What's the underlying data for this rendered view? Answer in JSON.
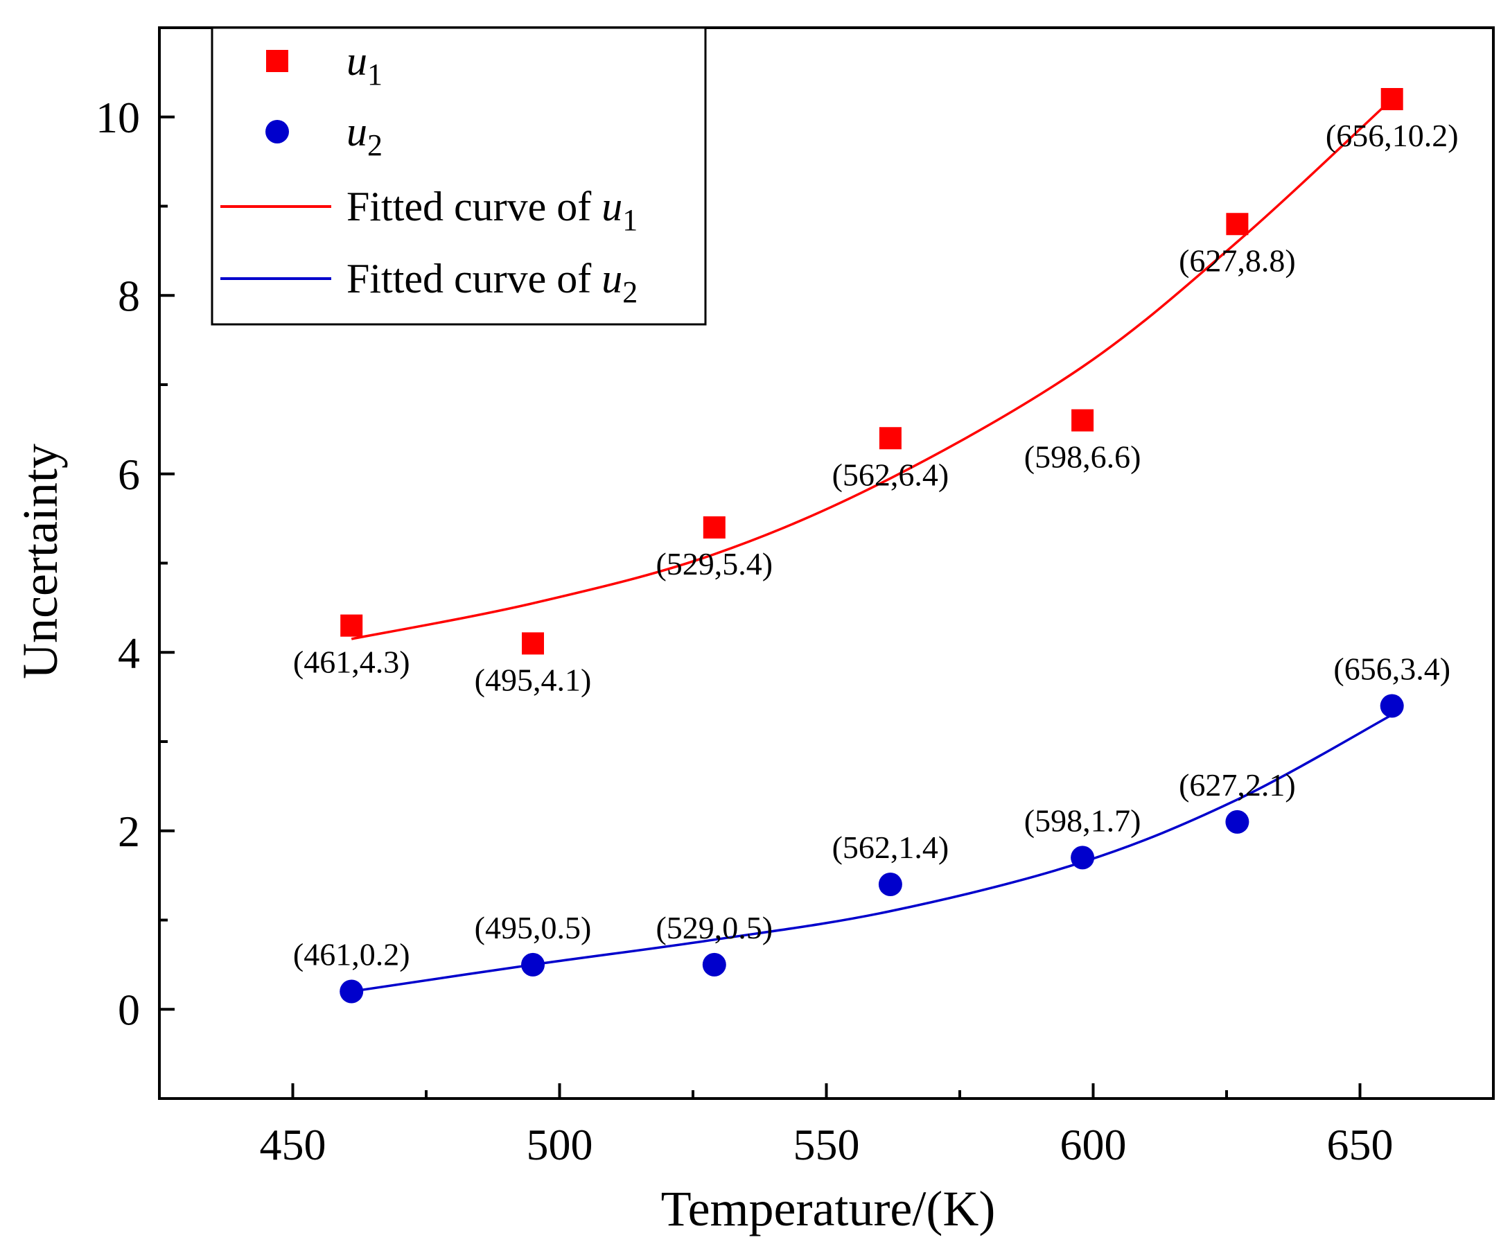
{
  "chart_data": {
    "type": "scatter",
    "title": "",
    "xlabel": "Temperature/(K)",
    "ylabel": "Uncertainty",
    "xlim": [
      425,
      675
    ],
    "ylim": [
      -1,
      11
    ],
    "x_ticks": [
      450,
      500,
      550,
      600,
      650
    ],
    "x_minor_ticks": [
      475,
      525,
      575,
      625
    ],
    "y_ticks": [
      0,
      2,
      4,
      6,
      8,
      10
    ],
    "y_minor_ticks": [
      1,
      3,
      5,
      7,
      9
    ],
    "x_tick_labels": [
      "450",
      "500",
      "550",
      "600",
      "650"
    ],
    "y_tick_labels": [
      "0",
      "2",
      "4",
      "6",
      "8",
      "10"
    ],
    "grid": false,
    "legend_position": "top-left",
    "series": [
      {
        "name": "u1",
        "legend_label": "u",
        "legend_sub": "1",
        "marker": "square",
        "color": "#ff0000",
        "x": [
          461,
          495,
          529,
          562,
          598,
          627,
          656
        ],
        "y": [
          4.3,
          4.1,
          5.4,
          6.4,
          6.6,
          8.8,
          10.2
        ],
        "labels": [
          "(461,4.3)",
          "(495,4.1)",
          "(529,5.4)",
          "(562,6.4)",
          "(598,6.6)",
          "(627,8.8)",
          "(656,10.2)"
        ]
      },
      {
        "name": "u2",
        "legend_label": "u",
        "legend_sub": "2",
        "marker": "circle",
        "color": "#0000cc",
        "x": [
          461,
          495,
          529,
          562,
          598,
          627,
          656
        ],
        "y": [
          0.2,
          0.5,
          0.5,
          1.4,
          1.7,
          2.1,
          3.4
        ],
        "labels": [
          "(461,0.2)",
          "(495,0.5)",
          "(529,0.5)",
          "(562,1.4)",
          "(598,1.7)",
          "(627,2.1)",
          "(656,3.4)"
        ]
      }
    ],
    "fits": [
      {
        "name": "fit-u1",
        "legend_prefix": "Fitted curve of ",
        "legend_var": "u",
        "legend_sub": "1",
        "color": "#ff0000",
        "x": [
          461,
          495,
          529,
          562,
          598,
          627,
          656
        ],
        "y": [
          4.15,
          4.55,
          5.1,
          5.95,
          7.2,
          8.6,
          10.2
        ]
      },
      {
        "name": "fit-u2",
        "legend_prefix": "Fitted curve of ",
        "legend_var": "u",
        "legend_sub": "2",
        "color": "#0000cc",
        "x": [
          461,
          495,
          529,
          562,
          598,
          627,
          656
        ],
        "y": [
          0.2,
          0.5,
          0.78,
          1.1,
          1.65,
          2.35,
          3.3
        ]
      }
    ]
  }
}
